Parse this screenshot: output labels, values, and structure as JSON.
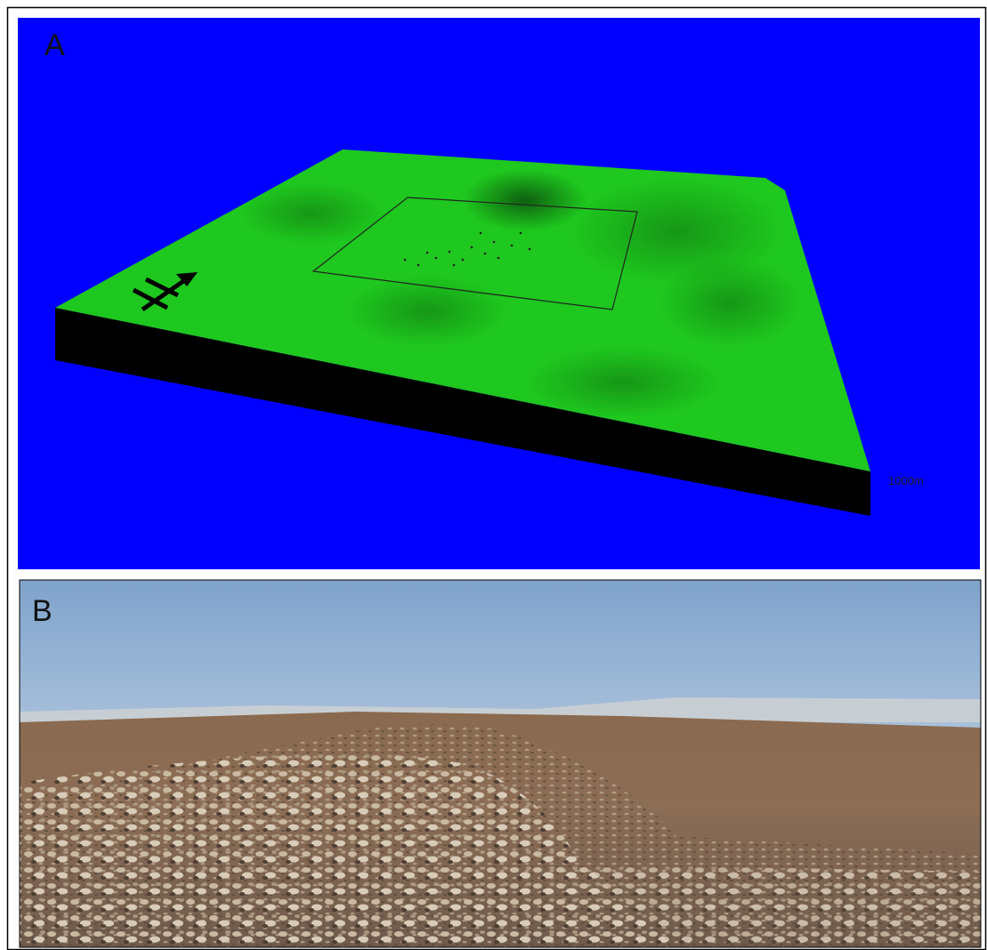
{
  "panels": [
    {
      "label": "A",
      "scale_label": "1000m"
    },
    {
      "label": "B"
    }
  ]
}
